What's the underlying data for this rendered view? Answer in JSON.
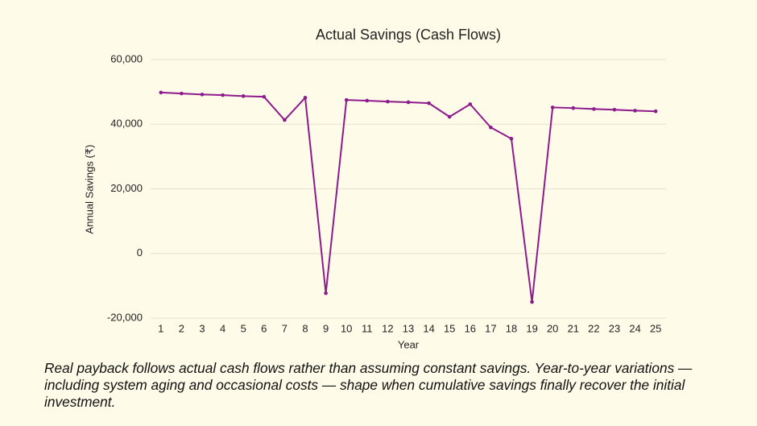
{
  "chart_data": {
    "type": "line",
    "title": "Actual Savings (Cash Flows)",
    "x_label": "Year",
    "y_label": "Annual Savings (₹)",
    "categories": [
      "1",
      "2",
      "3",
      "4",
      "5",
      "6",
      "7",
      "8",
      "9",
      "10",
      "11",
      "12",
      "13",
      "14",
      "15",
      "16",
      "17",
      "18",
      "19",
      "20",
      "21",
      "22",
      "23",
      "24",
      "25"
    ],
    "series": [
      {
        "name": "Actual Savings",
        "color": "#8e1a8e",
        "values": [
          49800,
          49500,
          49200,
          49000,
          48700,
          48500,
          41300,
          48200,
          -12300,
          47500,
          47300,
          47000,
          46800,
          46500,
          42300,
          46200,
          39000,
          35500,
          -15000,
          45200,
          45000,
          44700,
          44500,
          44200,
          44000
        ]
      }
    ],
    "ylim": [
      -20000,
      60000
    ],
    "yticks": [
      {
        "value": -20000,
        "label": "-20,000"
      },
      0,
      {
        "value": 20000,
        "label": "20,000"
      },
      {
        "value": 40000,
        "label": "40,000"
      },
      {
        "value": 60000,
        "label": "60,000"
      }
    ],
    "grid": true
  },
  "caption": "Real payback follows actual cash flows rather than assuming constant savings. Year-to-year variations — including system aging and occasional costs — shape when cumulative savings finally recover the initial investment."
}
